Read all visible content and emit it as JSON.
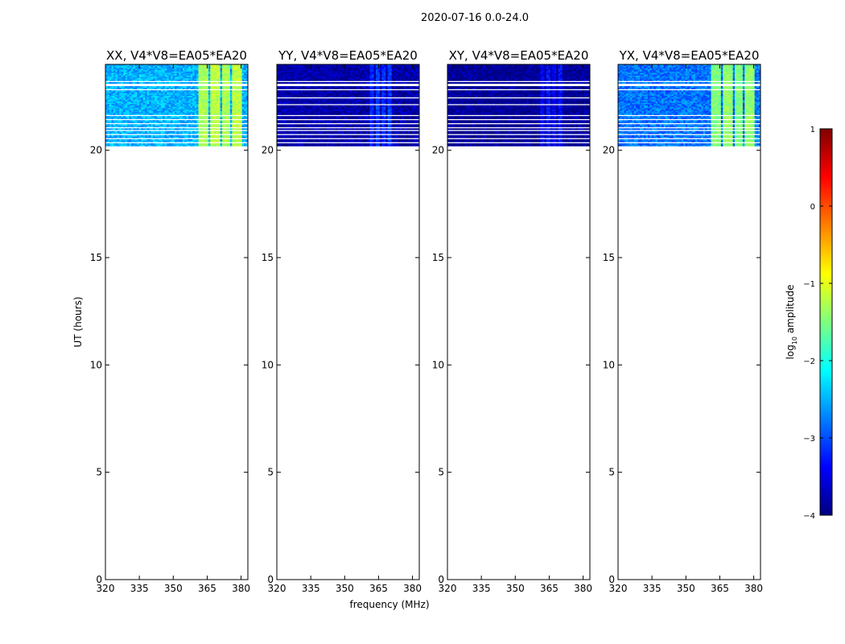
{
  "suptitle": "2020-07-16 0.0-24.0",
  "colorbar": {
    "label_prefix": "log",
    "label_sub": "10",
    "label_suffix": " amplitude",
    "range": [
      -4,
      1
    ],
    "ticks": [
      1,
      0,
      -1,
      -2,
      -3,
      -4
    ],
    "tick_labels": [
      "1",
      "0",
      "−1",
      "−2",
      "−3",
      "−4"
    ],
    "colormap": "jet",
    "colors": [
      "#00007f",
      "#0000ff",
      "#007fff",
      "#00ffff",
      "#7fff7f",
      "#ffff00",
      "#ff7f00",
      "#ff0000",
      "#7f0000"
    ]
  },
  "chart_data": [
    {
      "type": "heatmap",
      "title": "XX, V4*V8=EA05*EA20",
      "xlabel": "",
      "ylabel": "UT (hours)",
      "xlim": [
        320,
        383
      ],
      "ylim": [
        0,
        24
      ],
      "xticks": [
        320,
        335,
        350,
        365,
        380
      ],
      "yticks": [
        0,
        5,
        10,
        15,
        20
      ],
      "data_time_range": [
        20.2,
        24.0
      ],
      "baseline_log_amplitude": -2.5,
      "bright_channel_band_mhz": [
        360,
        380
      ],
      "bright_band_log_amplitude": -1.3,
      "flagged_rows_hours": [
        20.35,
        20.55,
        20.75,
        20.95,
        21.05,
        21.25,
        21.45,
        21.65,
        22.85,
        23.05,
        23.2
      ]
    },
    {
      "type": "heatmap",
      "title": "YY, V4*V8=EA05*EA20",
      "xlabel": "frequency (MHz)",
      "ylabel": "",
      "xlim": [
        320,
        383
      ],
      "ylim": [
        0,
        24
      ],
      "xticks": [
        320,
        335,
        350,
        365,
        380
      ],
      "yticks": [
        0,
        5,
        10,
        15,
        20
      ],
      "data_time_range": [
        20.2,
        24.0
      ],
      "baseline_log_amplitude": -3.8,
      "bright_channel_band_mhz": [
        360,
        370
      ],
      "bright_band_log_amplitude": -3.2,
      "flagged_rows_hours": [
        20.35,
        20.55,
        20.75,
        20.95,
        21.05,
        21.25,
        21.45,
        21.65,
        22.15,
        22.45,
        22.85,
        23.05,
        23.2
      ]
    },
    {
      "type": "heatmap",
      "title": "XY, V4*V8=EA05*EA20",
      "xlabel": "",
      "ylabel": "",
      "xlim": [
        320,
        383
      ],
      "ylim": [
        0,
        24
      ],
      "xticks": [
        320,
        335,
        350,
        365,
        380
      ],
      "yticks": [
        0,
        5,
        10,
        15,
        20
      ],
      "data_time_range": [
        20.2,
        24.0
      ],
      "baseline_log_amplitude": -3.9,
      "bright_channel_band_mhz": [
        360,
        370
      ],
      "bright_band_log_amplitude": -3.4,
      "flagged_rows_hours": [
        20.35,
        20.55,
        20.75,
        20.95,
        21.05,
        21.25,
        21.45,
        21.65,
        22.15,
        22.45,
        22.85,
        23.05,
        23.2
      ]
    },
    {
      "type": "heatmap",
      "title": "YX, V4*V8=EA05*EA20",
      "xlabel": "",
      "ylabel": "",
      "xlim": [
        320,
        383
      ],
      "ylim": [
        0,
        24
      ],
      "xticks": [
        320,
        335,
        350,
        365,
        380
      ],
      "yticks": [
        0,
        5,
        10,
        15,
        20
      ],
      "data_time_range": [
        20.2,
        24.0
      ],
      "baseline_log_amplitude": -2.8,
      "bright_channel_band_mhz": [
        360,
        380
      ],
      "bright_band_log_amplitude": -1.5,
      "flagged_rows_hours": [
        20.35,
        20.55,
        20.75,
        20.95,
        21.05,
        21.25,
        21.45,
        21.65,
        22.85,
        23.05,
        23.2
      ]
    }
  ]
}
